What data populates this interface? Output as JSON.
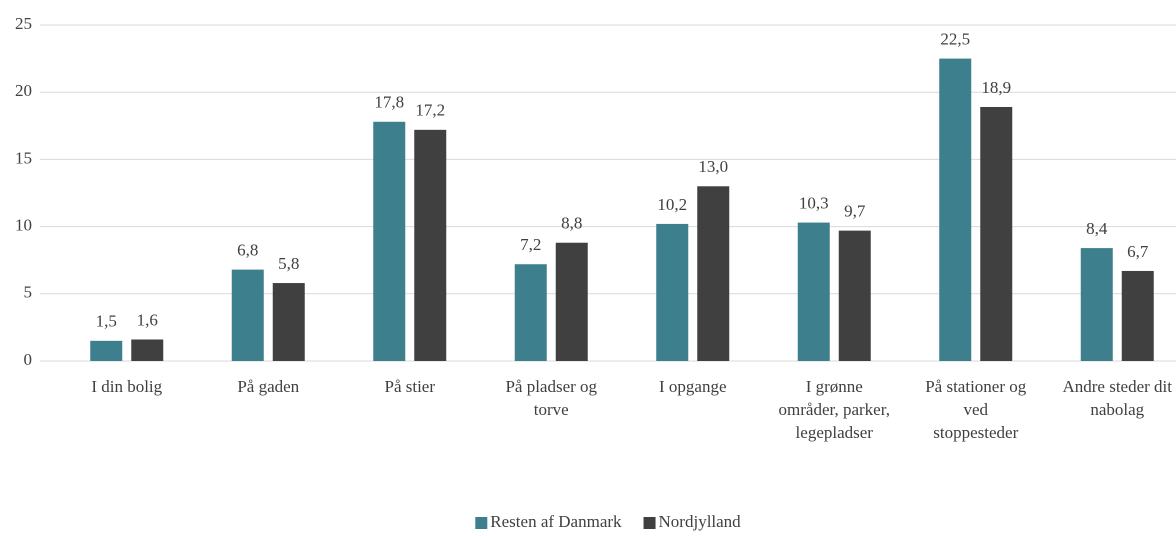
{
  "chart_data": {
    "type": "bar",
    "categories": [
      "I din bolig",
      "På gaden",
      "På stier",
      "På pladser og torve",
      "I opgange",
      "I grønne områder, parker, legepladser",
      "På stationer og ved stoppesteder",
      "Andre steder dit nabolag"
    ],
    "series": [
      {
        "name": "Resten af Danmark",
        "color": "#3d7f8c",
        "values": [
          1.5,
          6.8,
          17.8,
          7.2,
          10.2,
          10.3,
          22.5,
          8.4
        ],
        "value_labels": [
          "1,5",
          "6,8",
          "17,8",
          "7,2",
          "10,2",
          "10,3",
          "22,5",
          "8,4"
        ]
      },
      {
        "name": "Nordjylland",
        "color": "#404040",
        "values": [
          1.6,
          5.8,
          17.2,
          8.8,
          13.0,
          9.7,
          18.9,
          6.7
        ],
        "value_labels": [
          "1,6",
          "5,8",
          "17,2",
          "8,8",
          "13,0",
          "9,7",
          "18,9",
          "6,7"
        ]
      }
    ],
    "ylim": [
      0,
      25
    ],
    "yticks": [
      0,
      5,
      10,
      15,
      20,
      25
    ],
    "grid": true,
    "legend": "bottom"
  }
}
